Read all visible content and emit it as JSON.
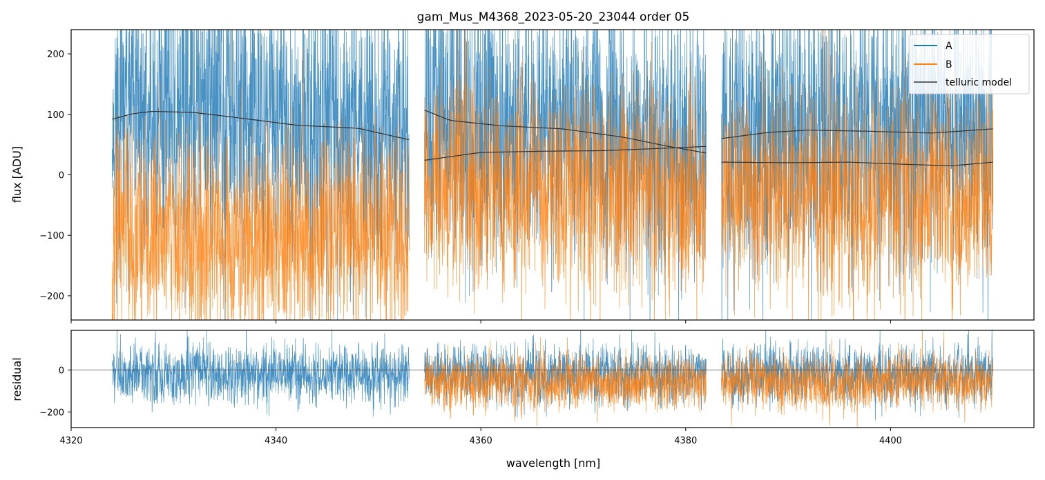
{
  "chart_data": [
    {
      "panel": "flux",
      "type": "line",
      "title": "gam_Mus_M4368_2023-05-20_23044  order 05",
      "xlabel": "",
      "ylabel": "flux [ADU]",
      "xlim": [
        4320,
        4414
      ],
      "ylim": [
        -240,
        240
      ],
      "yticks": [
        -200,
        -100,
        0,
        100,
        200
      ],
      "ytick_labels": [
        "−200",
        "−100",
        "0",
        "100",
        "200"
      ],
      "xticks": [
        4320,
        4340,
        4360,
        4380,
        4400
      ],
      "segments": [
        [
          4324,
          4353
        ],
        [
          4354.5,
          4382
        ],
        [
          4383.5,
          4410
        ]
      ],
      "series": [
        {
          "name": "A",
          "color": "#1f77b4",
          "noise_amplitude": 150,
          "baseline": [
            [
              4324,
              92
            ],
            [
              4328,
              105
            ],
            [
              4335,
              98
            ],
            [
              4345,
              78
            ],
            [
              4353,
              58
            ],
            [
              4354.5,
              107
            ],
            [
              4360,
              82
            ],
            [
              4370,
              72
            ],
            [
              4382,
              36
            ],
            [
              4383.5,
              60
            ],
            [
              4390,
              73
            ],
            [
              4400,
              70
            ],
            [
              4410,
              76
            ]
          ]
        },
        {
          "name": "B",
          "color": "#ff7f0e",
          "noise_amplitude": 110,
          "baseline": [
            [
              4324,
              -110
            ],
            [
              4330,
              -100
            ],
            [
              4340,
              -110
            ],
            [
              4353,
              -90
            ],
            [
              4354.5,
              -20
            ],
            [
              4360,
              -30
            ],
            [
              4370,
              -25
            ],
            [
              4382,
              -30
            ],
            [
              4383.5,
              -40
            ],
            [
              4390,
              -35
            ],
            [
              4400,
              -40
            ],
            [
              4410,
              -45
            ]
          ]
        },
        {
          "name": "telluric model",
          "color": "#333333",
          "curves": [
            [
              [
                4324,
                92
              ],
              [
                4326,
                101
              ],
              [
                4328,
                105
              ],
              [
                4332,
                103
              ],
              [
                4336,
                95
              ],
              [
                4342,
                82
              ],
              [
                4348,
                77
              ],
              [
                4353,
                58
              ]
            ],
            [
              [
                4354.5,
                107
              ],
              [
                4357,
                90
              ],
              [
                4362,
                81
              ],
              [
                4368,
                76
              ],
              [
                4374,
                62
              ],
              [
                4378,
                48
              ],
              [
                4382,
                36
              ]
            ],
            [
              [
                4354.5,
                24
              ],
              [
                4360,
                37
              ],
              [
                4366,
                39
              ],
              [
                4372,
                40
              ],
              [
                4378,
                44
              ],
              [
                4382,
                47
              ]
            ],
            [
              [
                4383.5,
                60
              ],
              [
                4388,
                70
              ],
              [
                4392,
                74
              ],
              [
                4398,
                72
              ],
              [
                4404,
                69
              ],
              [
                4410,
                76
              ]
            ],
            [
              [
                4383.5,
                21
              ],
              [
                4390,
                20
              ],
              [
                4396,
                21
              ],
              [
                4402,
                17
              ],
              [
                4406,
                15
              ],
              [
                4410,
                21
              ]
            ]
          ]
        }
      ],
      "legend": {
        "position": "top-right",
        "entries": [
          {
            "label": "A",
            "color": "#1f77b4"
          },
          {
            "label": "B",
            "color": "#ff7f0e"
          },
          {
            "label": "telluric model",
            "color": "#333333"
          }
        ]
      }
    },
    {
      "panel": "residual",
      "type": "line",
      "xlabel": "wavelength [nm]",
      "ylabel": "residual",
      "xlim": [
        4320,
        4414
      ],
      "ylim": [
        -275,
        190
      ],
      "yticks": [
        -200,
        0
      ],
      "ytick_labels": [
        "−200",
        "0"
      ],
      "xticks": [
        4320,
        4340,
        4360,
        4380,
        4400
      ],
      "xtick_labels": [
        "4320",
        "4340",
        "4360",
        "4380",
        "4400"
      ],
      "zero_line": 0,
      "series": [
        {
          "name": "A",
          "color": "#1f77b4",
          "noise_amplitude": 90,
          "center": -20,
          "segments": [
            [
              4324,
              4353
            ],
            [
              4354.5,
              4382
            ],
            [
              4383.5,
              4410
            ]
          ]
        },
        {
          "name": "B",
          "color": "#ff7f0e",
          "noise_amplitude": 85,
          "center": -60,
          "segments": [
            [
              4354.5,
              4382
            ],
            [
              4383.5,
              4410
            ]
          ]
        }
      ]
    }
  ]
}
